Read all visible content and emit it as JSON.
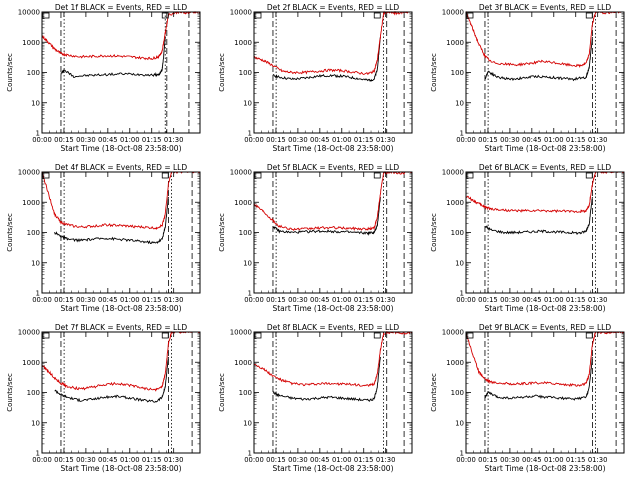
{
  "chart_data": {
    "type": "line",
    "panels": [
      {
        "title": "Det 1f BLACK = Events, RED = LLD",
        "ylabel": "Counts/sec",
        "xlabel": "Start Time (18-Oct-08 23:58:00)",
        "xticks": [
          "00:00",
          "00:15",
          "00:30",
          "00:45",
          "01:00",
          "01:15",
          "01:30"
        ],
        "yticks": [
          "1",
          "10",
          "100",
          "1000",
          "10000"
        ],
        "ylim": [
          1,
          10000
        ],
        "xlim_min": [
          0,
          100
        ],
        "vlines_dashed": [
          12,
          79,
          93
        ],
        "vlines_dotted": [
          14,
          78
        ],
        "series": [
          {
            "color": "#000000",
            "x": [
              12,
              14,
              20,
              30,
              40,
              50,
              60,
              70,
              74,
              76,
              77,
              78
            ],
            "y": [
              90,
              120,
              75,
              80,
              85,
              90,
              88,
              82,
              85,
              120,
              350,
              1500
            ]
          },
          {
            "color": "#d40000",
            "x": [
              0,
              4,
              8,
              12,
              16,
              24,
              32,
              40,
              48,
              56,
              64,
              70,
              74,
              76,
              78,
              80,
              86,
              90,
              96,
              100
            ],
            "y": [
              1600,
              1000,
              600,
              420,
              380,
              330,
              340,
              360,
              350,
              330,
              300,
              290,
              340,
              500,
              2000,
              8000,
              10000,
              9500,
              10000,
              10000
            ]
          }
        ]
      },
      {
        "title": "Det 2f BLACK = Events, RED = LLD",
        "ylabel": "Counts/sec",
        "xlabel": "Start Time (18-Oct-08 23:58:00)",
        "xticks": [
          "00:00",
          "00:15",
          "00:30",
          "00:45",
          "01:00",
          "01:15",
          "01:30"
        ],
        "yticks": [
          "1",
          "10",
          "100",
          "1000",
          "10000"
        ],
        "ylim": [
          1,
          10000
        ],
        "xlim_min": [
          0,
          100
        ],
        "vlines_dashed": [
          12,
          84,
          95
        ],
        "vlines_dotted": [
          14,
          82
        ],
        "series": [
          {
            "color": "#000000",
            "x": [
              12,
              16,
              24,
              32,
              40,
              48,
              56,
              64,
              72,
              76,
              78,
              80
            ],
            "y": [
              80,
              70,
              60,
              65,
              75,
              80,
              75,
              65,
              55,
              60,
              120,
              1500
            ]
          },
          {
            "color": "#d40000",
            "x": [
              0,
              6,
              12,
              18,
              24,
              32,
              40,
              48,
              56,
              64,
              72,
              76,
              78,
              80,
              82,
              86,
              90,
              95,
              100
            ],
            "y": [
              320,
              250,
              170,
              110,
              100,
              100,
              110,
              120,
              115,
              100,
              90,
              110,
              250,
              1500,
              9000,
              10000,
              9000,
              10000,
              10000
            ]
          }
        ]
      },
      {
        "title": "Det 3f BLACK = Events, RED = LLD",
        "ylabel": "Counts/sec",
        "xlabel": "Start Time (18-Oct-08 23:58:00)",
        "xticks": [
          "00:00",
          "00:15",
          "00:30",
          "00:45",
          "01:00",
          "01:15",
          "01:30"
        ],
        "yticks": [
          "1",
          "10",
          "100",
          "1000",
          "10000"
        ],
        "ylim": [
          1,
          10000
        ],
        "xlim_min": [
          0,
          100
        ],
        "vlines_dashed": [
          12,
          80,
          95
        ],
        "vlines_dotted": [
          14,
          82
        ],
        "series": [
          {
            "color": "#000000",
            "x": [
              12,
              14,
              20,
              28,
              36,
              44,
              52,
              60,
              68,
              76,
              78,
              80
            ],
            "y": [
              60,
              110,
              70,
              60,
              65,
              75,
              70,
              65,
              60,
              70,
              150,
              1500
            ]
          },
          {
            "color": "#d40000",
            "x": [
              0,
              4,
              8,
              12,
              16,
              24,
              32,
              40,
              48,
              56,
              64,
              72,
              76,
              78,
              80,
              82,
              88,
              94,
              100
            ],
            "y": [
              10000,
              3000,
              900,
              350,
              220,
              190,
              180,
              200,
              230,
              210,
              180,
              165,
              200,
              400,
              4000,
              10000,
              9500,
              10000,
              10000
            ]
          }
        ]
      },
      {
        "title": "Det 4f BLACK = Events, RED = LLD",
        "ylabel": "Counts/sec",
        "xlabel": "Start Time (18-Oct-08 23:58:00)",
        "xticks": [
          "00:00",
          "00:15",
          "00:30",
          "00:45",
          "01:00",
          "01:15",
          "01:30"
        ],
        "yticks": [
          "1",
          "10",
          "100",
          "1000",
          "10000"
        ],
        "ylim": [
          1,
          10000
        ],
        "xlim_min": [
          0,
          100
        ],
        "vlines_dashed": [
          12,
          80,
          95
        ],
        "vlines_dotted": [
          14,
          82
        ],
        "series": [
          {
            "color": "#000000",
            "x": [
              8,
              12,
              16,
              24,
              32,
              40,
              48,
              56,
              64,
              72,
              76,
              78,
              80
            ],
            "y": [
              100,
              75,
              60,
              55,
              60,
              65,
              60,
              55,
              50,
              45,
              60,
              150,
              1500
            ]
          },
          {
            "color": "#d40000",
            "x": [
              0,
              4,
              8,
              12,
              16,
              24,
              32,
              40,
              48,
              56,
              64,
              72,
              76,
              78,
              80,
              82,
              90,
              100
            ],
            "y": [
              10000,
              2000,
              400,
              220,
              180,
              150,
              160,
              180,
              170,
              160,
              150,
              140,
              170,
              400,
              4000,
              10000,
              10000,
              10000
            ]
          }
        ]
      },
      {
        "title": "Det 5f BLACK = Events, RED = LLD",
        "ylabel": "Counts/sec",
        "xlabel": "Start Time (18-Oct-08 23:58:00)",
        "xticks": [
          "00:00",
          "00:15",
          "00:30",
          "00:45",
          "01:00",
          "01:15",
          "01:30"
        ],
        "yticks": [
          "1",
          "10",
          "100",
          "1000",
          "10000"
        ],
        "ylim": [
          1,
          10000
        ],
        "xlim_min": [
          0,
          100
        ],
        "vlines_dashed": [
          12,
          84,
          95
        ],
        "vlines_dotted": [
          14,
          82
        ],
        "series": [
          {
            "color": "#000000",
            "x": [
              12,
              16,
              24,
              32,
              40,
              48,
              56,
              64,
              72,
              76,
              78,
              80
            ],
            "y": [
              160,
              110,
              100,
              105,
              110,
              110,
              105,
              100,
              95,
              100,
              160,
              1500
            ]
          },
          {
            "color": "#d40000",
            "x": [
              0,
              6,
              12,
              16,
              24,
              32,
              40,
              48,
              56,
              64,
              72,
              76,
              78,
              80,
              82,
              86,
              92,
              100
            ],
            "y": [
              900,
              500,
              250,
              160,
              130,
              130,
              140,
              145,
              140,
              135,
              130,
              140,
              300,
              2000,
              9000,
              10000,
              9000,
              10000
            ]
          }
        ]
      },
      {
        "title": "Det 6f BLACK = Events, RED = LLD",
        "ylabel": "Counts/sec",
        "xlabel": "Start Time (18-Oct-08 23:58:00)",
        "xticks": [
          "00:00",
          "00:15",
          "00:30",
          "00:45",
          "01:00",
          "01:15",
          "01:30"
        ],
        "yticks": [
          "1",
          "10",
          "100",
          "1000",
          "10000"
        ],
        "ylim": [
          1,
          10000
        ],
        "xlim_min": [
          0,
          100
        ],
        "vlines_dashed": [
          12,
          80,
          95
        ],
        "vlines_dotted": [
          14,
          82
        ],
        "series": [
          {
            "color": "#000000",
            "x": [
              12,
              16,
              24,
              32,
              40,
              48,
              56,
              64,
              72,
              76,
              78,
              80
            ],
            "y": [
              160,
              120,
              100,
              100,
              105,
              110,
              105,
              100,
              95,
              110,
              200,
              1500
            ]
          },
          {
            "color": "#d40000",
            "x": [
              0,
              4,
              8,
              12,
              16,
              24,
              32,
              40,
              48,
              56,
              64,
              72,
              76,
              78,
              80,
              82,
              90,
              100
            ],
            "y": [
              1600,
              1200,
              900,
              700,
              600,
              550,
              520,
              520,
              520,
              510,
              500,
              500,
              520,
              800,
              4000,
              10000,
              10000,
              10000
            ]
          }
        ]
      },
      {
        "title": "Det 7f BLACK = Events, RED = LLD",
        "ylabel": "Counts/sec",
        "xlabel": "Start Time (18-Oct-08 23:58:00)",
        "xticks": [
          "00:00",
          "00:15",
          "00:30",
          "00:45",
          "01:00",
          "01:15",
          "01:30"
        ],
        "yticks": [
          "1",
          "10",
          "100",
          "1000",
          "10000"
        ],
        "ylim": [
          1,
          10000
        ],
        "xlim_min": [
          0,
          100
        ],
        "vlines_dashed": [
          12,
          80,
          95
        ],
        "vlines_dotted": [
          14,
          82
        ],
        "series": [
          {
            "color": "#000000",
            "x": [
              8,
              12,
              16,
              24,
              32,
              40,
              48,
              56,
              64,
              72,
              76,
              78,
              80
            ],
            "y": [
              120,
              85,
              70,
              55,
              60,
              70,
              75,
              65,
              55,
              50,
              70,
              150,
              1500
            ]
          },
          {
            "color": "#d40000",
            "x": [
              0,
              4,
              8,
              12,
              16,
              24,
              32,
              40,
              48,
              56,
              64,
              72,
              76,
              78,
              80,
              82,
              90,
              100
            ],
            "y": [
              800,
              500,
              300,
              200,
              160,
              130,
              150,
              180,
              200,
              170,
              140,
              120,
              160,
              400,
              4000,
              10000,
              10000,
              10000
            ]
          }
        ]
      },
      {
        "title": "Det 8f BLACK = Events, RED = LLD",
        "ylabel": "Counts/sec",
        "xlabel": "Start Time (18-Oct-08 23:58:00)",
        "xticks": [
          "00:00",
          "00:15",
          "00:30",
          "00:45",
          "01:00",
          "01:15",
          "01:30"
        ],
        "yticks": [
          "1",
          "10",
          "100",
          "1000",
          "10000"
        ],
        "ylim": [
          1,
          10000
        ],
        "xlim_min": [
          0,
          100
        ],
        "vlines_dashed": [
          12,
          84,
          95
        ],
        "vlines_dotted": [
          14,
          82
        ],
        "series": [
          {
            "color": "#000000",
            "x": [
              12,
              16,
              24,
              32,
              40,
              48,
              56,
              64,
              72,
              76,
              78,
              80
            ],
            "y": [
              100,
              80,
              65,
              60,
              65,
              70,
              65,
              60,
              55,
              60,
              150,
              1500
            ]
          },
          {
            "color": "#d40000",
            "x": [
              0,
              6,
              12,
              18,
              24,
              32,
              40,
              48,
              56,
              64,
              72,
              76,
              78,
              80,
              82,
              88,
              94,
              100
            ],
            "y": [
              900,
              600,
              350,
              250,
              200,
              180,
              190,
              200,
              190,
              180,
              165,
              190,
              400,
              2500,
              9000,
              10000,
              9000,
              10000
            ]
          }
        ]
      },
      {
        "title": "Det 9f BLACK = Events, RED = LLD",
        "ylabel": "Counts/sec",
        "xlabel": "Start Time (18-Oct-08 23:58:00)",
        "xticks": [
          "00:00",
          "00:15",
          "00:30",
          "00:45",
          "01:00",
          "01:15",
          "01:30"
        ],
        "yticks": [
          "1",
          "10",
          "100",
          "1000",
          "10000"
        ],
        "ylim": [
          1,
          10000
        ],
        "xlim_min": [
          0,
          100
        ],
        "vlines_dashed": [
          12,
          80,
          95
        ],
        "vlines_dotted": [
          14,
          82
        ],
        "series": [
          {
            "color": "#000000",
            "x": [
              12,
              14,
              20,
              28,
              36,
              44,
              52,
              60,
              68,
              76,
              78,
              80
            ],
            "y": [
              70,
              100,
              70,
              65,
              70,
              75,
              70,
              65,
              60,
              70,
              150,
              1500
            ]
          },
          {
            "color": "#d40000",
            "x": [
              0,
              4,
              8,
              12,
              16,
              24,
              32,
              40,
              48,
              56,
              64,
              72,
              76,
              78,
              80,
              82,
              88,
              94,
              100
            ],
            "y": [
              10000,
              2000,
              500,
              280,
              220,
              200,
              190,
              200,
              210,
              200,
              180,
              170,
              200,
              400,
              4000,
              10000,
              9500,
              10000,
              10000
            ]
          }
        ]
      }
    ]
  }
}
